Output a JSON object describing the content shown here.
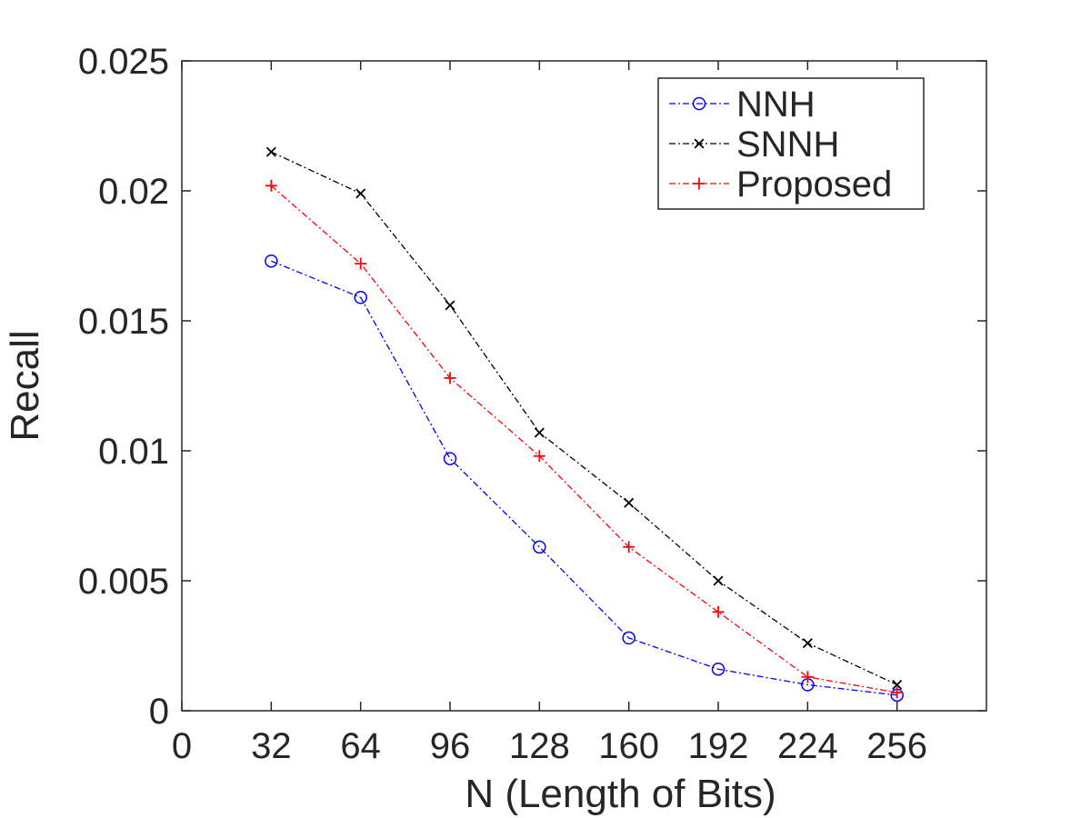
{
  "chart_data": {
    "type": "line",
    "title": "",
    "xlabel": "N (Length of Bits)",
    "ylabel": "Recall",
    "xlim": [
      0,
      288
    ],
    "ylim": [
      0,
      0.025
    ],
    "xticks": [
      0,
      32,
      64,
      96,
      128,
      160,
      192,
      224,
      256
    ],
    "xtick_labels": [
      "0",
      "32",
      "64",
      "96",
      "128",
      "160",
      "192",
      "224",
      "256"
    ],
    "yticks": [
      0,
      0.005,
      0.01,
      0.015,
      0.02,
      0.025
    ],
    "ytick_labels": [
      "0",
      "0.005",
      "0.01",
      "0.015",
      "0.02",
      "0.025"
    ],
    "grid": false,
    "legend_position": "top-right",
    "x": [
      32,
      64,
      96,
      128,
      160,
      192,
      224,
      256
    ],
    "series": [
      {
        "name": "NNH",
        "color": "#0000ff",
        "marker": "circle",
        "line_style": "dash-dot",
        "values": [
          0.0173,
          0.0159,
          0.0097,
          0.0063,
          0.0028,
          0.0016,
          0.001,
          0.0006
        ]
      },
      {
        "name": "SNNH",
        "color": "#000000",
        "marker": "x",
        "line_style": "dash-dot",
        "values": [
          0.0215,
          0.0199,
          0.0156,
          0.0107,
          0.008,
          0.005,
          0.0026,
          0.001
        ]
      },
      {
        "name": "Proposed",
        "color": "#ff0000",
        "marker": "plus",
        "line_style": "dash-dot",
        "values": [
          0.0202,
          0.0172,
          0.0128,
          0.0098,
          0.0063,
          0.0038,
          0.0013,
          0.0007
        ]
      }
    ]
  }
}
